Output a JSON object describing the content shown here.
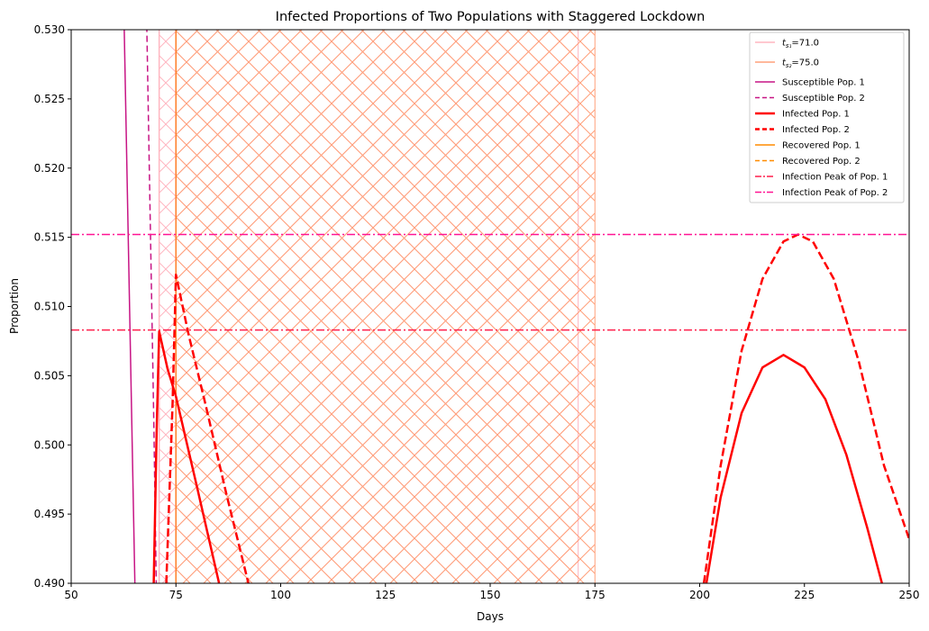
{
  "chart_data": {
    "type": "line",
    "title": "Infected Proportions of Two Populations with Staggered Lockdown",
    "xlabel": "Days",
    "ylabel": "Proportion",
    "xlim": [
      50,
      250
    ],
    "ylim": [
      0.49,
      0.53
    ],
    "x_ticks": [
      50,
      75,
      100,
      125,
      150,
      175,
      200,
      225,
      250
    ],
    "y_ticks": [
      0.49,
      0.495,
      0.5,
      0.505,
      0.51,
      0.515,
      0.52,
      0.525,
      0.53
    ],
    "grid": false,
    "legend_position": "top-right",
    "lockdowns": [
      {
        "name": "t_s1",
        "legend_label": "=71.0",
        "sub": "s₁",
        "start": 71,
        "end": 171,
        "color": "#ffb6c1",
        "hatch": "diagonal-cross"
      },
      {
        "name": "t_s2",
        "legend_label": "=75.0",
        "sub": "s₂",
        "start": 75,
        "end": 175,
        "color": "#ffa07a",
        "hatch": "diagonal"
      }
    ],
    "series": [
      {
        "name": "Susceptible Pop. 1",
        "color": "#c71585",
        "style": "solid",
        "width": 1.5,
        "points": [
          [
            62.6,
            0.531
          ],
          [
            65.2,
            0.49
          ]
        ]
      },
      {
        "name": "Susceptible Pop. 2",
        "color": "#c71585",
        "style": "dashed",
        "width": 1.5,
        "points": [
          [
            68.0,
            0.531
          ],
          [
            69.7,
            0.502
          ],
          [
            70.3,
            0.49
          ]
        ]
      },
      {
        "name": "Infected Pop. 1",
        "color": "#ff0000",
        "style": "solid",
        "width": 2.5,
        "segments": [
          [
            [
              69.7,
              0.49
            ],
            [
              70.4,
              0.501
            ],
            [
              71.0,
              0.5082
            ],
            [
              73,
              0.5055
            ],
            [
              75,
              0.5035
            ],
            [
              80,
              0.497
            ],
            [
              85.3,
              0.49
            ]
          ],
          [
            [
              201.6,
              0.49
            ],
            [
              205,
              0.4962
            ],
            [
              210,
              0.5023
            ],
            [
              215,
              0.5056
            ],
            [
              220,
              0.5065
            ],
            [
              225,
              0.5056
            ],
            [
              230,
              0.5033
            ],
            [
              235,
              0.4993
            ],
            [
              240,
              0.494
            ],
            [
              243.5,
              0.49
            ]
          ]
        ]
      },
      {
        "name": "Infected Pop. 2",
        "color": "#ff0000",
        "style": "dashed",
        "width": 2.5,
        "segments": [
          [
            [
              72.7,
              0.49
            ],
            [
              74.2,
              0.503
            ],
            [
              75.0,
              0.5123
            ],
            [
              78,
              0.508
            ],
            [
              82,
              0.503
            ],
            [
              87,
              0.4965
            ],
            [
              92.3,
              0.49
            ]
          ],
          [
            [
              201.0,
              0.49
            ],
            [
              205,
              0.4985
            ],
            [
              210,
              0.5068
            ],
            [
              215,
              0.512
            ],
            [
              220,
              0.5147
            ],
            [
              223.5,
              0.5152
            ],
            [
              227,
              0.5147
            ],
            [
              232,
              0.512
            ],
            [
              238,
              0.506
            ],
            [
              244,
              0.4985
            ],
            [
              250,
              0.4932
            ]
          ]
        ]
      },
      {
        "name": "Recovered Pop. 1",
        "color": "#ff8c00",
        "style": "solid",
        "width": 1.5,
        "points": []
      },
      {
        "name": "Recovered Pop. 2",
        "color": "#ff8c00",
        "style": "dashed",
        "width": 1.5,
        "points": []
      },
      {
        "name": "Infection Peak of Pop. 1",
        "color": "#ff1f4b",
        "style": "dashdot",
        "width": 1.5,
        "hline": 0.5083
      },
      {
        "name": "Infection Peak of Pop. 2",
        "color": "#ff1493",
        "style": "dashdot",
        "width": 1.5,
        "hline": 0.5152
      }
    ]
  }
}
